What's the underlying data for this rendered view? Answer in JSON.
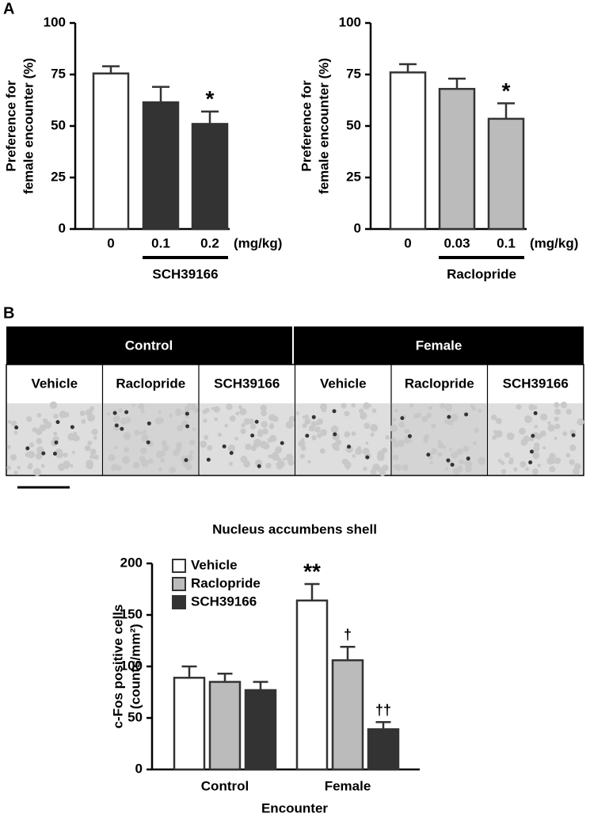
{
  "panel_labels": [
    "A",
    "B"
  ],
  "histology": {
    "headers": [
      "Control",
      "Female"
    ],
    "columns": [
      "Vehicle",
      "Raclopride",
      "SCH39166",
      "Vehicle",
      "Raclopride",
      "SCH39166"
    ]
  },
  "chart_data": [
    {
      "type": "bar",
      "ylabel": [
        "Preference for",
        "female encounter (%)"
      ],
      "categories": [
        "0",
        "0.1",
        "0.2"
      ],
      "values": [
        75.5,
        61.5,
        51
      ],
      "errors": [
        3.5,
        7.5,
        6
      ],
      "colors": [
        "#ffffff",
        "#333333",
        "#333333"
      ],
      "annotations": [
        null,
        null,
        "*"
      ],
      "unit_label": "(mg/kg)",
      "group_label": "SCH39166",
      "ylim": [
        0,
        100
      ],
      "yticks": [
        0,
        25,
        50,
        75,
        100
      ]
    },
    {
      "type": "bar",
      "ylabel": [
        "Preference for",
        "female encounter (%)"
      ],
      "categories": [
        "0",
        "0.03",
        "0.1"
      ],
      "values": [
        76,
        68,
        53.5
      ],
      "errors": [
        4,
        5,
        7.5
      ],
      "colors": [
        "#ffffff",
        "#bbbbbb",
        "#bbbbbb"
      ],
      "annotations": [
        null,
        null,
        "*"
      ],
      "unit_label": "(mg/kg)",
      "group_label": "Raclopride",
      "ylim": [
        0,
        100
      ],
      "yticks": [
        0,
        25,
        50,
        75,
        100
      ]
    },
    {
      "type": "grouped_bar",
      "title": "Nucleus accumbens shell",
      "ylabel": [
        "c-Fos positive cells",
        "(counts/mm²)"
      ],
      "xlabel": "Encounter",
      "categories": [
        "Control",
        "Female"
      ],
      "series": [
        {
          "name": "Vehicle",
          "color": "#ffffff",
          "values": [
            89,
            164
          ],
          "errors": [
            11,
            16
          ],
          "annotations": [
            null,
            "**"
          ]
        },
        {
          "name": "Raclopride",
          "color": "#bbbbbb",
          "values": [
            85,
            106
          ],
          "errors": [
            8,
            13
          ],
          "annotations": [
            null,
            "†"
          ]
        },
        {
          "name": "SCH39166",
          "color": "#333333",
          "values": [
            77,
            39
          ],
          "errors": [
            8,
            7
          ],
          "annotations": [
            null,
            "††"
          ]
        }
      ],
      "ylim": [
        0,
        200
      ],
      "yticks": [
        0,
        50,
        100,
        150,
        200
      ],
      "legend": "top-left"
    }
  ]
}
